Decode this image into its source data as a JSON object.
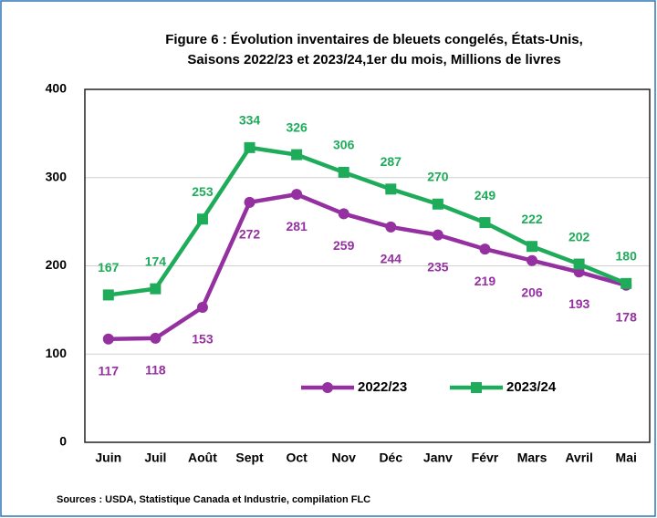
{
  "chart_data": {
    "type": "line",
    "title": [
      "Figure 6 : Évolution inventaires de bleuets congelés, États-Unis,",
      "Saisons 2022/23 et 2023/24,1er du mois,  Millions de livres"
    ],
    "categories": [
      "Juin",
      "Juil",
      "Août",
      "Sept",
      "Oct",
      "Nov",
      "Déc",
      "Janv",
      "Févr",
      "Mars",
      "Avril",
      "Mai"
    ],
    "series": [
      {
        "name": "2022/23",
        "color": "#9430a0",
        "marker": "circle",
        "values": [
          117,
          118,
          153,
          272,
          281,
          259,
          244,
          235,
          219,
          206,
          193,
          178
        ]
      },
      {
        "name": "2023/24",
        "color": "#1eab5a",
        "marker": "square",
        "values": [
          167,
          174,
          253,
          334,
          326,
          306,
          287,
          270,
          249,
          222,
          202,
          180
        ]
      }
    ],
    "ylim": [
      0,
      400
    ],
    "yticks": [
      0,
      100,
      200,
      300,
      400
    ],
    "grid": true,
    "source": "Sources : USDA, Statistique Canada et Industrie, compilation FLC"
  }
}
